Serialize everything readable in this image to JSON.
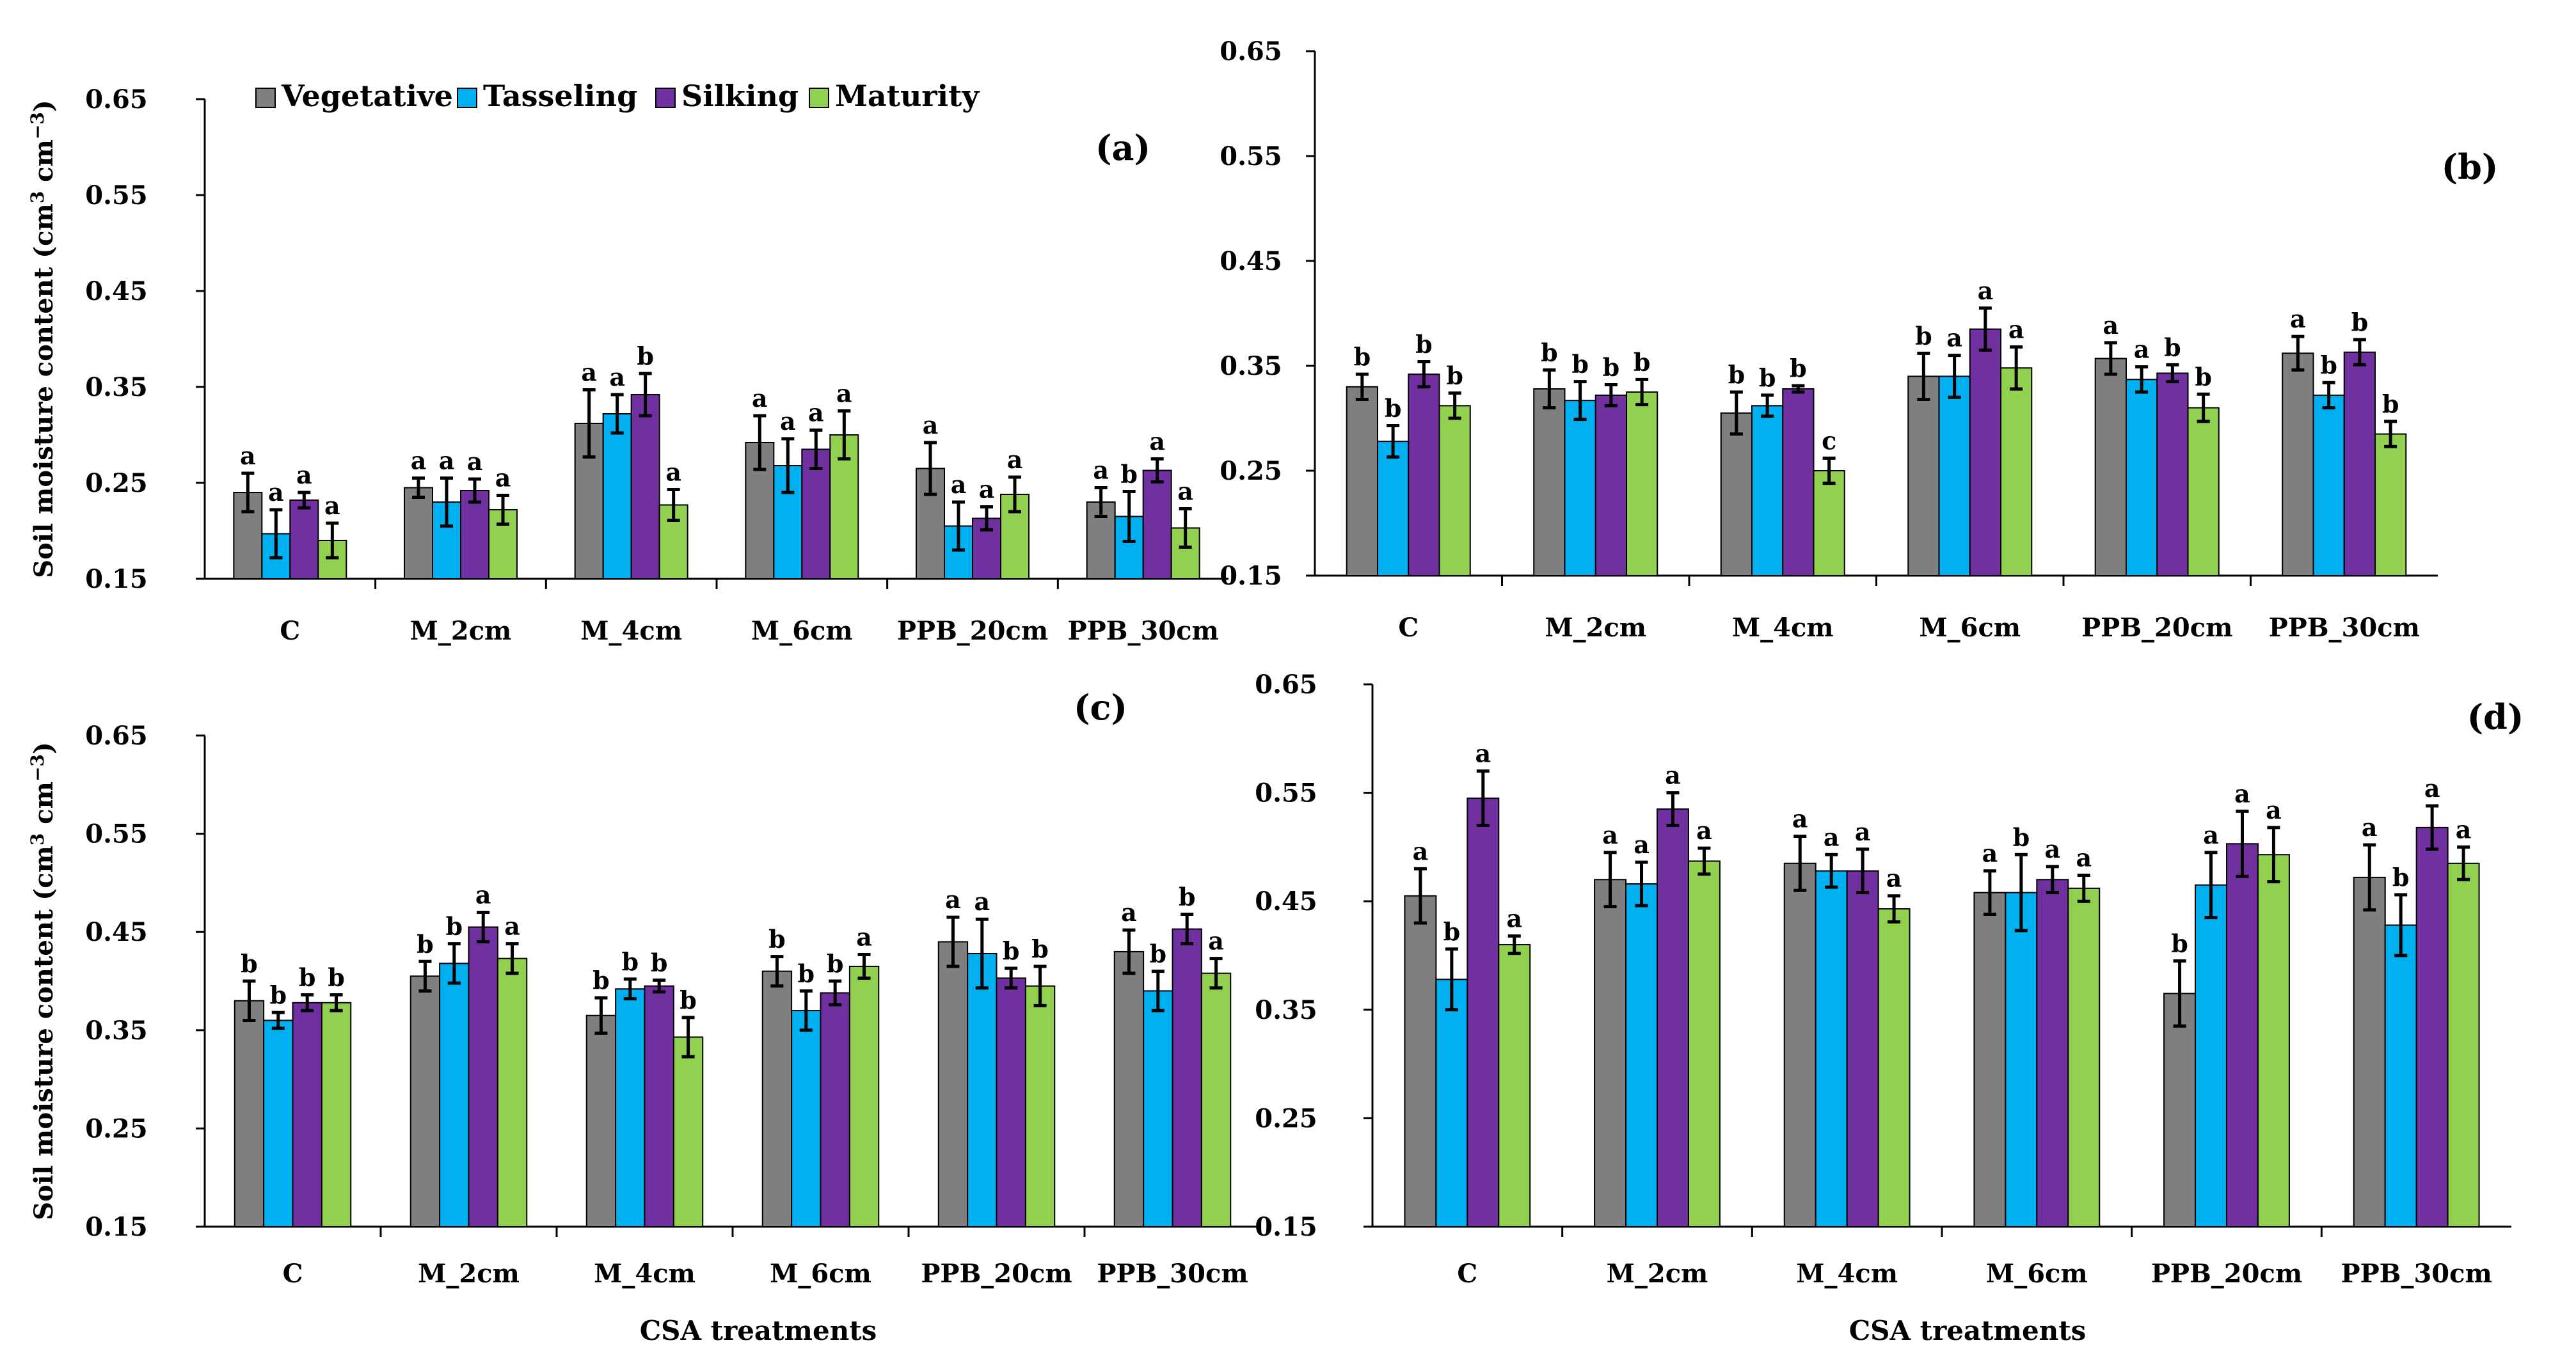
{
  "series_names": [
    "Vegetative",
    "Tasseling",
    "Silking",
    "Maturity"
  ],
  "colors": {
    "Vegetative": "#7f7f7f",
    "Tasseling": "#00b0f0",
    "Silking": "#7030a0",
    "Maturity": "#92d050"
  },
  "chart_data": [
    {
      "panel": "(a)",
      "type": "bar",
      "ylabel_main": "Soil moisture content (cm",
      "ylabel_sup1": "3",
      "ylabel_mid": " cm",
      "ylabel_sup2": "−3",
      "ylabel_end": ")",
      "xlabel": "",
      "ylim": [
        0.15,
        0.65
      ],
      "yticks": [
        "0.15",
        "0.25",
        "0.35",
        "0.45",
        "0.55",
        "0.65"
      ],
      "categories": [
        "C",
        "M_2cm",
        "M_4cm",
        "M_6cm",
        "PPB_20cm",
        "PPB_30cm"
      ],
      "series": [
        {
          "name": "Vegetative",
          "values": [
            0.24,
            0.245,
            0.312,
            0.292,
            0.265,
            0.23
          ],
          "errors": [
            0.02,
            0.01,
            0.035,
            0.028,
            0.027,
            0.015
          ],
          "labels": [
            "a",
            "a",
            "a",
            "a",
            "a",
            "a"
          ]
        },
        {
          "name": "Tasseling",
          "values": [
            0.197,
            0.23,
            0.322,
            0.268,
            0.205,
            0.215
          ],
          "errors": [
            0.025,
            0.025,
            0.02,
            0.028,
            0.025,
            0.026
          ],
          "labels": [
            "a",
            "a",
            "a",
            "a",
            "a",
            "b"
          ]
        },
        {
          "name": "Silking",
          "values": [
            0.232,
            0.242,
            0.342,
            0.285,
            0.213,
            0.263
          ],
          "errors": [
            0.008,
            0.012,
            0.022,
            0.02,
            0.012,
            0.012
          ],
          "labels": [
            "a",
            "a",
            "b",
            "a",
            "a",
            "a"
          ]
        },
        {
          "name": "Maturity",
          "values": [
            0.19,
            0.222,
            0.227,
            0.3,
            0.238,
            0.203
          ],
          "errors": [
            0.018,
            0.015,
            0.016,
            0.025,
            0.018,
            0.02
          ],
          "labels": [
            "a",
            "a",
            "a",
            "a",
            "a",
            "a"
          ]
        }
      ]
    },
    {
      "panel": "(b)",
      "type": "bar",
      "ylabel_main": "",
      "ylabel_sup1": "",
      "ylabel_mid": "",
      "ylabel_sup2": "",
      "ylabel_end": "",
      "xlabel": "",
      "ylim": [
        0.15,
        0.65
      ],
      "yticks": [
        "0.15",
        "0.25",
        "0.35",
        "0.45",
        "0.55",
        "0.65"
      ],
      "categories": [
        "C",
        "M_2cm",
        "M_4cm",
        "M_6cm",
        "PPB_20cm",
        "PPB_30cm"
      ],
      "series": [
        {
          "name": "Vegetative",
          "values": [
            0.33,
            0.328,
            0.305,
            0.34,
            0.357,
            0.362
          ],
          "errors": [
            0.012,
            0.018,
            0.02,
            0.022,
            0.015,
            0.016
          ],
          "labels": [
            "b",
            "b",
            "b",
            "b",
            "a",
            "a"
          ]
        },
        {
          "name": "Tasseling",
          "values": [
            0.278,
            0.317,
            0.312,
            0.34,
            0.337,
            0.322
          ],
          "errors": [
            0.015,
            0.018,
            0.01,
            0.02,
            0.012,
            0.012
          ],
          "labels": [
            "b",
            "b",
            "b",
            "a",
            "a",
            "b"
          ]
        },
        {
          "name": "Silking",
          "values": [
            0.342,
            0.322,
            0.328,
            0.385,
            0.343,
            0.363
          ],
          "errors": [
            0.012,
            0.01,
            0.003,
            0.02,
            0.008,
            0.012
          ],
          "labels": [
            "b",
            "b",
            "b",
            "a",
            "b",
            "b"
          ]
        },
        {
          "name": "Maturity",
          "values": [
            0.312,
            0.325,
            0.25,
            0.348,
            0.31,
            0.285
          ],
          "errors": [
            0.012,
            0.012,
            0.012,
            0.02,
            0.013,
            0.012
          ],
          "labels": [
            "b",
            "b",
            "c",
            "a",
            "b",
            "b"
          ]
        }
      ]
    },
    {
      "panel": "(c)",
      "type": "bar",
      "ylabel_main": "Soil moisture content  (cm",
      "ylabel_sup1": "3",
      "ylabel_mid": " cm",
      "ylabel_sup2": "−3",
      "ylabel_end": ")",
      "xlabel": "CSA  treatments",
      "ylim": [
        0.15,
        0.65
      ],
      "yticks": [
        "0.15",
        "0.25",
        "0.35",
        "0.45",
        "0.55",
        "0.65"
      ],
      "categories": [
        "C",
        "M_2cm",
        "M_4cm",
        "M_6cm",
        "PPB_20cm",
        "PPB_30cm"
      ],
      "series": [
        {
          "name": "Vegetative",
          "values": [
            0.38,
            0.405,
            0.365,
            0.41,
            0.44,
            0.43
          ],
          "errors": [
            0.02,
            0.015,
            0.018,
            0.015,
            0.025,
            0.022
          ],
          "labels": [
            "b",
            "b",
            "b",
            "b",
            "a",
            "a"
          ]
        },
        {
          "name": "Tasseling",
          "values": [
            0.36,
            0.418,
            0.392,
            0.37,
            0.428,
            0.39
          ],
          "errors": [
            0.008,
            0.02,
            0.01,
            0.02,
            0.035,
            0.02
          ],
          "labels": [
            "b",
            "b",
            "b",
            "b",
            "a",
            "b"
          ]
        },
        {
          "name": "Silking",
          "values": [
            0.378,
            0.455,
            0.395,
            0.388,
            0.403,
            0.453
          ],
          "errors": [
            0.008,
            0.015,
            0.006,
            0.012,
            0.01,
            0.015
          ],
          "labels": [
            "b",
            "a",
            "b",
            "b",
            "b",
            "b"
          ]
        },
        {
          "name": "Maturity",
          "values": [
            0.378,
            0.423,
            0.343,
            0.415,
            0.395,
            0.408
          ],
          "errors": [
            0.008,
            0.015,
            0.02,
            0.012,
            0.02,
            0.015
          ],
          "labels": [
            "b",
            "a",
            "b",
            "a",
            "b",
            "a"
          ]
        }
      ]
    },
    {
      "panel": "(d)",
      "type": "bar",
      "ylabel_main": "",
      "ylabel_sup1": "",
      "ylabel_mid": "",
      "ylabel_sup2": "",
      "ylabel_end": "",
      "xlabel": "CSA  treatments",
      "ylim": [
        0.15,
        0.65
      ],
      "yticks": [
        "0.15",
        "0.25",
        "0.35",
        "0.45",
        "0.55",
        "0.65"
      ],
      "categories": [
        "C",
        "M_2cm",
        "M_4cm",
        "M_6cm",
        "PPB_20cm",
        "PPB_30cm"
      ],
      "series": [
        {
          "name": "Vegetative",
          "values": [
            0.455,
            0.47,
            0.485,
            0.458,
            0.365,
            0.472
          ],
          "errors": [
            0.025,
            0.025,
            0.025,
            0.02,
            0.03,
            0.03
          ],
          "labels": [
            "a",
            "a",
            "a",
            "a",
            "b",
            "a"
          ]
        },
        {
          "name": "Tasseling",
          "values": [
            0.378,
            0.466,
            0.478,
            0.458,
            0.465,
            0.428
          ],
          "errors": [
            0.028,
            0.02,
            0.015,
            0.035,
            0.03,
            0.028
          ],
          "labels": [
            "b",
            "a",
            "a",
            "b",
            "a",
            "b"
          ]
        },
        {
          "name": "Silking",
          "values": [
            0.545,
            0.535,
            0.478,
            0.47,
            0.503,
            0.518
          ],
          "errors": [
            0.025,
            0.015,
            0.02,
            0.012,
            0.03,
            0.02
          ],
          "labels": [
            "a",
            "a",
            "a",
            "a",
            "a",
            "a"
          ]
        },
        {
          "name": "Maturity",
          "values": [
            0.41,
            0.487,
            0.443,
            0.462,
            0.493,
            0.485
          ],
          "errors": [
            0.008,
            0.012,
            0.012,
            0.012,
            0.025,
            0.015
          ],
          "labels": [
            "a",
            "a",
            "a",
            "a",
            "a",
            "a"
          ]
        }
      ]
    }
  ]
}
